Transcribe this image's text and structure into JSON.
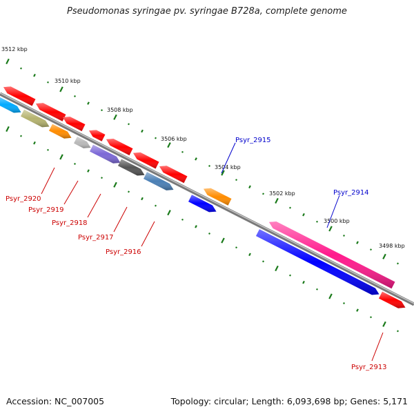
{
  "title": "Pseudomonas syringae pv. syringae B728a, complete genome",
  "footer": {
    "accession": "Accession: NC_007005",
    "stats": "Topology: circular; Length: 6,093,698 bp; Genes: 5,171"
  },
  "colors": {
    "background": "#ffffff",
    "backbone": "#7a7a7a",
    "ticks": "#1a7a1a",
    "label_forward": "#0000cc",
    "label_reverse": "#cc0000"
  },
  "ticks": {
    "start_kbp": 3512,
    "end_kbp": 3497.2,
    "minor_step_kbp": 0.5,
    "major_step_kbp": 2
  },
  "tick_labels": [
    "3512 kbp",
    "3510 kbp",
    "3508 kbp",
    "3506 kbp",
    "3504 kbp",
    "3502 kbp",
    "3500 kbp",
    "3498 kbp"
  ],
  "genes": [
    {
      "id": "g1",
      "color": "#ff0000",
      "strand": "reverse",
      "label": ""
    },
    {
      "id": "g2",
      "color": "#00aaff",
      "strand": "forward",
      "label": ""
    },
    {
      "id": "g3",
      "color": "#ff0000",
      "strand": "reverse",
      "label": ""
    },
    {
      "id": "g4",
      "color": "#b5b36e",
      "strand": "forward",
      "label": ""
    },
    {
      "id": "g5",
      "color": "#ff0000",
      "strand": "reverse",
      "label": ""
    },
    {
      "id": "g6",
      "color": "#ff8c00",
      "strand": "forward",
      "label": "Psyr_2920"
    },
    {
      "id": "g7",
      "color": "#ff0000",
      "strand": "reverse",
      "label": ""
    },
    {
      "id": "g8",
      "color": "#b9b9b9",
      "strand": "forward",
      "label": "Psyr_2919"
    },
    {
      "id": "g9",
      "color": "#ff0000",
      "strand": "reverse",
      "label": ""
    },
    {
      "id": "g10",
      "color": "#7b68d6",
      "strand": "forward",
      "label": "Psyr_2918"
    },
    {
      "id": "g11",
      "color": "#ff0000",
      "strand": "reverse",
      "label": ""
    },
    {
      "id": "g12",
      "color": "#555555",
      "strand": "forward",
      "label": "Psyr_2917"
    },
    {
      "id": "g13",
      "color": "#ff0000",
      "strand": "reverse",
      "label": ""
    },
    {
      "id": "g14",
      "color": "#4a7fb5",
      "strand": "forward",
      "label": "Psyr_2916"
    },
    {
      "id": "g15",
      "color": "#ff8c00",
      "strand": "reverse",
      "label": "Psyr_2915"
    },
    {
      "id": "g16",
      "color": "#0000ff",
      "strand": "forward",
      "label": ""
    },
    {
      "id": "g17",
      "color": "#ff1a8c",
      "strand": "reverse",
      "label": "Psyr_2914"
    },
    {
      "id": "g18",
      "color": "#0000ff",
      "strand": "forward",
      "label": ""
    },
    {
      "id": "g19",
      "color": "#ff0000",
      "strand": "forward",
      "label": "Psyr_2913"
    }
  ]
}
